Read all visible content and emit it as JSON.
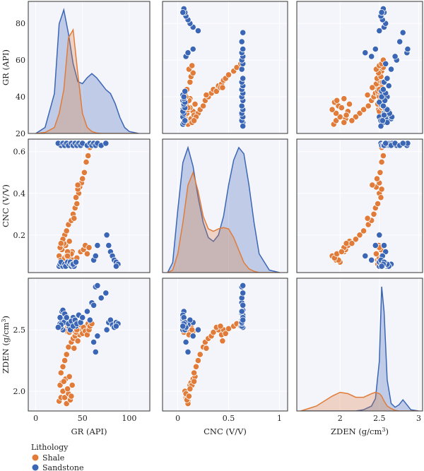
{
  "chart_data": {
    "type": "scatter",
    "subtype": "pairplot",
    "variables": [
      {
        "key": "GR",
        "label": "GR (API)",
        "range": [
          -8,
          122
        ],
        "ticks": [
          0,
          50,
          100
        ],
        "row_range": [
          20,
          92
        ],
        "row_ticks": [
          20,
          40,
          60,
          80
        ]
      },
      {
        "key": "CNC",
        "label": "CNC (V/V)",
        "range": [
          -0.15,
          1.08
        ],
        "ticks": [
          0,
          0.5,
          1
        ],
        "tick_labels": [
          "0",
          "0.5",
          "1"
        ],
        "row_range": [
          0.02,
          0.66
        ],
        "row_ticks": [
          0.2,
          0.4,
          0.6
        ]
      },
      {
        "key": "ZDEN",
        "label": "ZDEN (g/cm³)",
        "label_main": "ZDEN (g/cm",
        "label_sup": "3",
        "label_end": ")",
        "range": [
          1.45,
          3.05
        ],
        "ticks": [
          2,
          2.5,
          3
        ],
        "tick_labels": [
          "2",
          "2.5",
          "3"
        ],
        "row_range": [
          1.84,
          2.92
        ],
        "row_ticks": [
          2.0,
          2.5
        ]
      }
    ],
    "hue": "Lithology",
    "legend": {
      "title": "Lithology",
      "position": "bottom-left",
      "entries": [
        "Shale",
        "Sandstone"
      ]
    },
    "colors": {
      "Shale": "#e07b39",
      "Sandstone": "#3a66b5",
      "panel_bg": "#f4f4fb",
      "grid": "#ffffff"
    },
    "grid": true,
    "series": [
      {
        "name": "Shale",
        "points": [
          [
            25,
            1.92,
            0.1
          ],
          [
            27,
            1.95,
            0.08
          ],
          [
            29,
            2.0,
            0.07
          ],
          [
            31,
            1.95,
            0.09
          ],
          [
            33,
            1.9,
            0.1
          ],
          [
            35,
            1.98,
            0.08
          ],
          [
            37,
            1.93,
            0.09
          ],
          [
            39,
            2.05,
            0.12
          ],
          [
            28,
            2.07,
            0.13
          ],
          [
            32,
            2.1,
            0.15
          ],
          [
            36,
            2.12,
            0.17
          ],
          [
            26,
            2.05,
            0.14
          ],
          [
            38,
            1.96,
            0.11
          ],
          [
            34,
            2.02,
            0.12
          ],
          [
            30,
            2.08,
            0.16
          ],
          [
            31,
            2.25,
            0.2
          ],
          [
            33,
            2.3,
            0.22
          ],
          [
            35,
            2.36,
            0.25
          ],
          [
            38,
            2.4,
            0.27
          ],
          [
            40,
            2.43,
            0.3
          ],
          [
            42,
            2.45,
            0.33
          ],
          [
            44,
            2.48,
            0.35
          ],
          [
            46,
            2.5,
            0.4
          ],
          [
            47,
            2.46,
            0.43
          ],
          [
            49,
            2.5,
            0.45
          ],
          [
            29,
            2.2,
            0.18
          ],
          [
            27,
            2.15,
            0.16
          ],
          [
            41,
            2.35,
            0.28
          ],
          [
            43,
            2.52,
            0.38
          ],
          [
            45,
            2.53,
            0.42
          ],
          [
            45,
            2.41,
            0.44
          ],
          [
            50,
            2.47,
            0.47
          ],
          [
            52,
            2.51,
            0.5
          ],
          [
            54,
            2.53,
            0.55
          ],
          [
            56,
            2.55,
            0.58
          ],
          [
            33,
            2.49,
            0.05
          ],
          [
            35,
            2.51,
            0.06
          ],
          [
            37,
            2.5,
            0.06
          ],
          [
            39,
            2.52,
            0.07
          ],
          [
            41,
            2.49,
            0.07
          ],
          [
            43,
            2.48,
            0.08
          ],
          [
            32,
            2.5,
            0.05
          ],
          [
            36,
            2.48,
            0.06
          ],
          [
            40,
            2.5,
            0.08
          ],
          [
            38,
            2.51,
            0.05
          ],
          [
            42,
            2.52,
            0.07
          ],
          [
            44,
            2.5,
            0.09
          ],
          [
            34,
            2.53,
            0.1
          ],
          [
            48,
            2.54,
            0.12
          ],
          [
            51,
            2.52,
            0.13
          ],
          [
            53,
            2.49,
            0.15
          ],
          [
            55,
            2.46,
            0.11
          ],
          [
            57,
            2.5,
            0.14
          ],
          [
            58,
            2.53,
            0.62
          ],
          [
            60,
            2.55,
            0.63
          ]
        ]
      },
      {
        "name": "Sandstone",
        "points": [
          [
            25,
            2.53,
            0.05
          ],
          [
            28,
            2.65,
            0.06
          ],
          [
            30,
            2.6,
            0.05
          ],
          [
            26,
            2.55,
            0.06
          ],
          [
            29,
            2.5,
            0.05
          ],
          [
            27,
            2.52,
            0.07
          ],
          [
            31,
            2.56,
            0.06
          ],
          [
            33,
            2.58,
            0.05
          ],
          [
            35,
            2.54,
            0.06
          ],
          [
            32,
            2.62,
            0.05
          ],
          [
            34,
            2.57,
            0.07
          ],
          [
            36,
            2.52,
            0.06
          ],
          [
            38,
            2.55,
            0.05
          ],
          [
            37,
            2.5,
            0.07
          ],
          [
            39,
            2.58,
            0.06
          ],
          [
            41,
            2.54,
            0.05
          ],
          [
            40,
            2.6,
            0.06
          ],
          [
            43,
            2.53,
            0.07
          ],
          [
            28,
            2.58,
            0.63
          ],
          [
            30,
            2.56,
            0.63
          ],
          [
            26,
            2.6,
            0.64
          ],
          [
            27,
            2.54,
            0.63
          ],
          [
            24,
            2.52,
            0.64
          ],
          [
            29,
            2.66,
            0.64
          ],
          [
            31,
            2.63,
            0.63
          ],
          [
            33,
            2.6,
            0.64
          ],
          [
            35,
            2.55,
            0.63
          ],
          [
            38,
            2.57,
            0.64
          ],
          [
            40,
            2.53,
            0.63
          ],
          [
            42,
            2.58,
            0.64
          ],
          [
            44,
            2.55,
            0.63
          ],
          [
            46,
            2.62,
            0.64
          ],
          [
            48,
            2.56,
            0.63
          ],
          [
            50,
            2.6,
            0.64
          ],
          [
            55,
            2.65,
            0.63
          ],
          [
            58,
            2.58,
            0.64
          ],
          [
            60,
            2.72,
            0.63
          ],
          [
            62,
            2.7,
            0.64
          ],
          [
            64,
            2.85,
            0.63
          ],
          [
            66,
            2.86,
            0.64
          ],
          [
            70,
            2.76,
            0.63
          ],
          [
            75,
            2.8,
            0.64
          ],
          [
            76,
            2.5,
            0.2
          ],
          [
            78,
            2.56,
            0.15
          ],
          [
            80,
            2.58,
            0.12
          ],
          [
            82,
            2.54,
            0.1
          ],
          [
            84,
            2.52,
            0.08
          ],
          [
            86,
            2.56,
            0.07
          ],
          [
            88,
            2.55,
            0.06
          ],
          [
            86,
            2.53,
            0.05
          ],
          [
            66,
            2.45,
            0.15
          ],
          [
            62,
            2.4,
            0.08
          ],
          [
            64,
            2.32,
            0.1
          ]
        ]
      }
    ],
    "kde": {
      "GR": {
        "x": [
          0,
          10,
          20,
          25,
          30,
          35,
          40,
          45,
          50,
          55,
          60,
          65,
          70,
          75,
          80,
          85,
          90,
          95,
          100,
          110
        ],
        "Shale": [
          0,
          0.5,
          3,
          10,
          22,
          48,
          52,
          30,
          10,
          3,
          1,
          0.2,
          0,
          0,
          0,
          0,
          0,
          0,
          0,
          0
        ],
        "Sandstone": [
          0,
          3,
          20,
          55,
          62,
          50,
          35,
          26,
          25,
          28,
          30,
          28,
          25,
          22,
          20,
          15,
          8,
          3,
          1,
          0
        ]
      },
      "CNC": {
        "x": [
          -0.1,
          -0.05,
          0,
          0.05,
          0.1,
          0.15,
          0.2,
          0.25,
          0.3,
          0.35,
          0.4,
          0.45,
          0.5,
          0.55,
          0.6,
          0.65,
          0.7,
          0.75,
          0.8,
          0.9,
          1.0
        ],
        "Shale": [
          0,
          2,
          15,
          40,
          70,
          80,
          65,
          45,
          35,
          33,
          35,
          36,
          35,
          28,
          18,
          8,
          3,
          1,
          0,
          0,
          0
        ],
        "Sandstone": [
          0,
          8,
          50,
          88,
          100,
          85,
          60,
          40,
          28,
          25,
          30,
          45,
          70,
          90,
          100,
          95,
          70,
          40,
          15,
          2,
          0
        ]
      },
      "ZDEN": {
        "x": [
          1.5,
          1.7,
          1.9,
          2.0,
          2.1,
          2.2,
          2.3,
          2.4,
          2.45,
          2.5,
          2.53,
          2.56,
          2.6,
          2.65,
          2.7,
          2.75,
          2.8,
          2.85,
          2.9,
          3.0
        ],
        "Shale": [
          0,
          4,
          12,
          15,
          14,
          11,
          11,
          14,
          15,
          14,
          12,
          8,
          4,
          2,
          0.5,
          0,
          0,
          0,
          0,
          0
        ],
        "Sandstone": [
          0,
          0,
          0,
          0,
          0,
          0,
          1,
          4,
          10,
          40,
          100,
          80,
          25,
          6,
          3,
          5,
          9,
          5,
          1,
          0
        ]
      }
    }
  }
}
